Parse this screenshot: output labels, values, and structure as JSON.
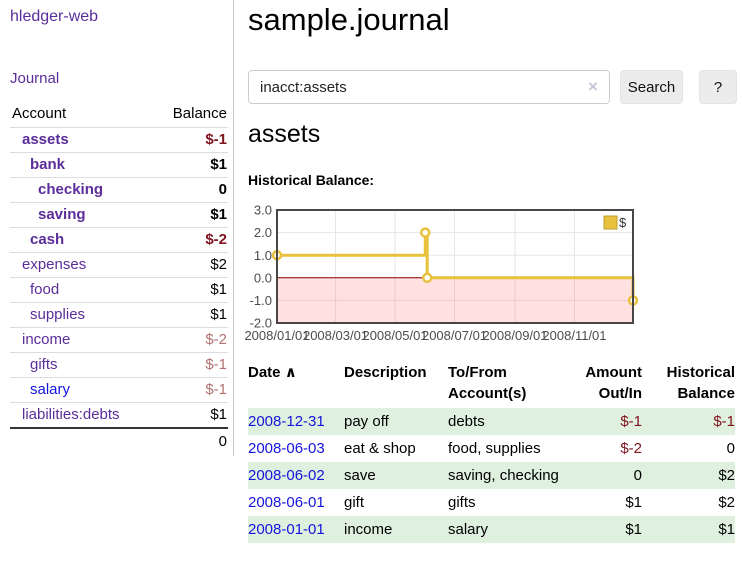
{
  "header": {
    "title": "sample.journal"
  },
  "sidebar": {
    "brand": "hledger-web",
    "nav": {
      "journal": "Journal"
    },
    "table": {
      "headers": {
        "account": "Account",
        "balance": "Balance"
      },
      "rows": [
        {
          "account": "assets",
          "balance": "$-1",
          "depth": 1,
          "bold": true,
          "balance_color": "neg-dark",
          "link_color": "purple"
        },
        {
          "account": "bank",
          "balance": "$1",
          "depth": 2,
          "bold": true,
          "balance_color": "plain",
          "link_color": "purple"
        },
        {
          "account": "checking",
          "balance": "0",
          "depth": 3,
          "bold": true,
          "balance_color": "plain",
          "link_color": "purple"
        },
        {
          "account": "saving",
          "balance": "$1",
          "depth": 3,
          "bold": true,
          "balance_color": "plain",
          "link_color": "purple"
        },
        {
          "account": "cash",
          "balance": "$-2",
          "depth": 2,
          "bold": true,
          "balance_color": "neg-dark",
          "link_color": "purple"
        },
        {
          "account": "expenses",
          "balance": "$2",
          "depth": 1,
          "bold": false,
          "balance_color": "plain",
          "link_color": "purple"
        },
        {
          "account": "food",
          "balance": "$1",
          "depth": 2,
          "bold": false,
          "balance_color": "plain",
          "link_color": "purple"
        },
        {
          "account": "supplies",
          "balance": "$1",
          "depth": 2,
          "bold": false,
          "balance_color": "plain",
          "link_color": "purple"
        },
        {
          "account": "income",
          "balance": "$-2",
          "depth": 1,
          "bold": false,
          "balance_color": "neg-light",
          "link_color": "purple"
        },
        {
          "account": "gifts",
          "balance": "$-1",
          "depth": 2,
          "bold": false,
          "balance_color": "neg-light",
          "link_color": "purple"
        },
        {
          "account": "salary",
          "balance": "$-1",
          "depth": 2,
          "bold": false,
          "balance_color": "neg-light",
          "link_color": "blue"
        },
        {
          "account": "liabilities:debts",
          "balance": "$1",
          "depth": 1,
          "bold": false,
          "balance_color": "plain",
          "link_color": "purple"
        }
      ],
      "total": "0"
    }
  },
  "search": {
    "value": "inacct:assets",
    "clear_icon": "×",
    "button": "Search",
    "help": "?"
  },
  "account_page": {
    "title": "assets",
    "chart_label": "Historical Balance:"
  },
  "chart_data": {
    "type": "line",
    "step": true,
    "title": "Historical Balance",
    "series": [
      {
        "name": "$",
        "points": [
          [
            "2008-01-01",
            1
          ],
          [
            "2008-06-01",
            2
          ],
          [
            "2008-06-03",
            0
          ],
          [
            "2008-12-31",
            -1
          ]
        ]
      }
    ],
    "xrange": [
      "2008-01-01",
      "2008-12-31"
    ],
    "ylim": [
      -2.0,
      3.0
    ],
    "yticks": [
      3.0,
      2.0,
      1.0,
      0.0,
      -1.0,
      -2.0
    ],
    "xticks": [
      "2008/01/01",
      "2008/03/01",
      "2008/05/01",
      "2008/07/01",
      "2008/09/01",
      "2008/11/01"
    ],
    "legend": "$",
    "legend_position": "top-right",
    "grid": true,
    "negative_region_shaded": true
  },
  "register": {
    "headers": {
      "date": "Date",
      "sort_indicator": "∧",
      "description": "Description",
      "accounts": "To/From Account(s)",
      "amount": "Amount Out/In",
      "balance": "Historical Balance"
    },
    "rows": [
      {
        "date": "2008-12-31",
        "description": "pay off",
        "accounts": "debts",
        "amount": "$-1",
        "amount_neg": true,
        "balance": "$-1",
        "balance_neg": true,
        "shaded": true
      },
      {
        "date": "2008-06-03",
        "description": "eat & shop",
        "accounts": "food, supplies",
        "amount": "$-2",
        "amount_neg": true,
        "balance": "0",
        "balance_neg": false,
        "shaded": false
      },
      {
        "date": "2008-06-02",
        "description": "save",
        "accounts": "saving, checking",
        "amount": "0",
        "amount_neg": false,
        "balance": "$2",
        "balance_neg": false,
        "shaded": true
      },
      {
        "date": "2008-06-01",
        "description": "gift",
        "accounts": "gifts",
        "amount": "$1",
        "amount_neg": false,
        "balance": "$2",
        "balance_neg": false,
        "shaded": false
      },
      {
        "date": "2008-01-01",
        "description": "income",
        "accounts": "salary",
        "amount": "$1",
        "amount_neg": false,
        "balance": "$1",
        "balance_neg": false,
        "shaded": true
      }
    ]
  },
  "colors": {
    "purple_link": "#5b2d9b",
    "blue_link": "#1414dd",
    "negative_dark": "#801520",
    "negative_light": "#b37272",
    "row_stripe_green": "#dff0df",
    "chart_line_gold": "#e8c13d",
    "chart_zero_line": "#8b0000",
    "chart_negative_fill": "rgba(255,70,70,0.16)"
  }
}
